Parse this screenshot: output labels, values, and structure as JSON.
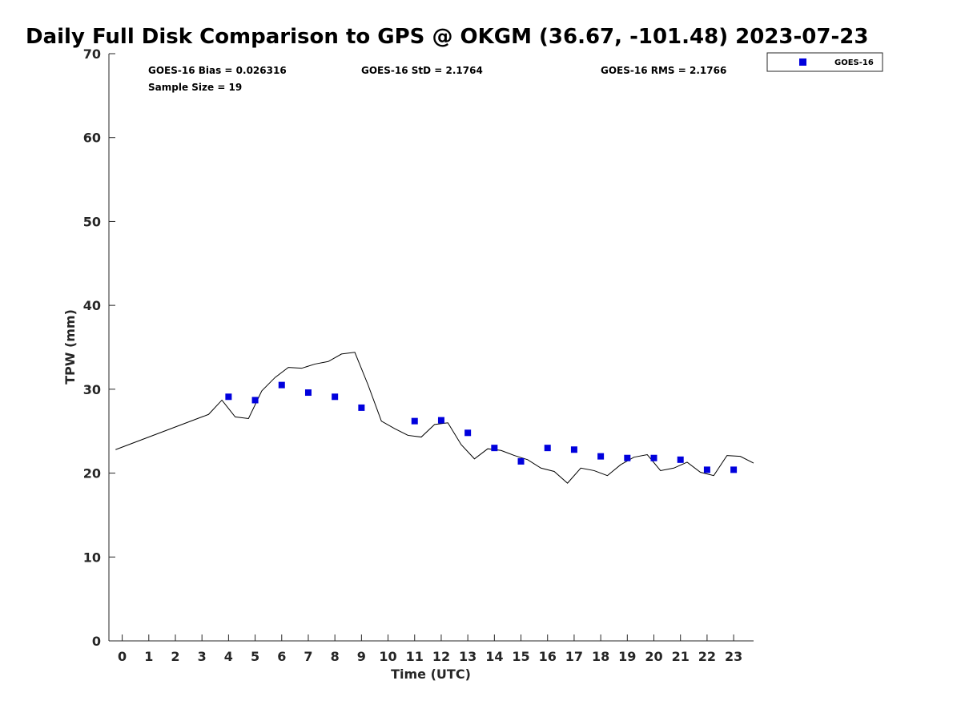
{
  "chart_data": {
    "type": "scatter",
    "title": "Daily Full Disk Comparison to GPS @ OKGM (36.67, -101.48) 2023-07-23",
    "xlabel": "Time (UTC)",
    "ylabel": "TPW (mm)",
    "xlim": [
      -0.5,
      23.75
    ],
    "ylim": [
      0,
      70
    ],
    "x_ticks": [
      0,
      1,
      2,
      3,
      4,
      5,
      6,
      7,
      8,
      9,
      10,
      11,
      12,
      13,
      14,
      15,
      16,
      17,
      18,
      19,
      20,
      21,
      22,
      23
    ],
    "x_tick_labels": [
      "0",
      "1",
      "2",
      "3",
      "4",
      "5",
      "6",
      "7",
      "8",
      "9",
      "10",
      "11",
      "12",
      "13",
      "14",
      "15",
      "16",
      "17",
      "18",
      "19",
      "20",
      "21",
      "22",
      "23"
    ],
    "y_ticks": [
      0,
      10,
      20,
      30,
      40,
      50,
      60,
      70
    ],
    "y_tick_labels": [
      "0",
      "10",
      "20",
      "30",
      "40",
      "50",
      "60",
      "70"
    ],
    "grid": false,
    "legend_position": "outside-top-right",
    "stats": {
      "bias": "GOES-16 Bias = 0.026316",
      "std": "GOES-16 StD = 2.1764",
      "rms": "GOES-16 RMS = 2.1766",
      "sample_size": "Sample Size = 19"
    },
    "series": [
      {
        "name": "GOES-16",
        "kind": "scatter",
        "marker": "square",
        "color": "#0000dd",
        "x": [
          4.0,
          5.0,
          6.0,
          7.0,
          8.0,
          9.0,
          11.0,
          12.0,
          13.0,
          14.0,
          15.0,
          16.0,
          17.0,
          18.0,
          19.0,
          20.0,
          21.0,
          22.0,
          23.0
        ],
        "y": [
          29.1,
          28.7,
          30.5,
          29.6,
          29.1,
          27.8,
          26.2,
          26.3,
          24.8,
          23.0,
          21.4,
          23.0,
          22.8,
          22.0,
          21.8,
          21.8,
          21.6,
          20.4,
          20.4
        ]
      },
      {
        "kind": "line",
        "color": "#000000",
        "x": [
          -0.25,
          3.25,
          3.75,
          4.25,
          4.75,
          5.25,
          5.75,
          6.25,
          6.75,
          7.25,
          7.75,
          8.25,
          8.75,
          9.25,
          9.75,
          10.25,
          10.75,
          11.25,
          11.75,
          12.25,
          12.75,
          13.25,
          13.75,
          14.25,
          14.75,
          15.25,
          15.75,
          16.25,
          16.75,
          17.25,
          17.75,
          18.25,
          18.75,
          19.25,
          19.75,
          20.25,
          20.75,
          21.25,
          21.75,
          22.25,
          22.75,
          23.25,
          23.75
        ],
        "y": [
          22.8,
          27.0,
          28.7,
          26.7,
          26.5,
          29.8,
          31.4,
          32.6,
          32.5,
          33.0,
          33.3,
          34.2,
          34.4,
          30.5,
          26.2,
          25.3,
          24.5,
          24.3,
          25.8,
          26.0,
          23.4,
          21.7,
          22.9,
          22.7,
          22.1,
          21.6,
          20.6,
          20.2,
          18.8,
          20.6,
          20.3,
          19.7,
          21.0,
          21.9,
          22.2,
          20.3,
          20.6,
          21.3,
          20.1,
          19.7,
          22.1,
          22.0,
          21.2
        ]
      }
    ]
  }
}
